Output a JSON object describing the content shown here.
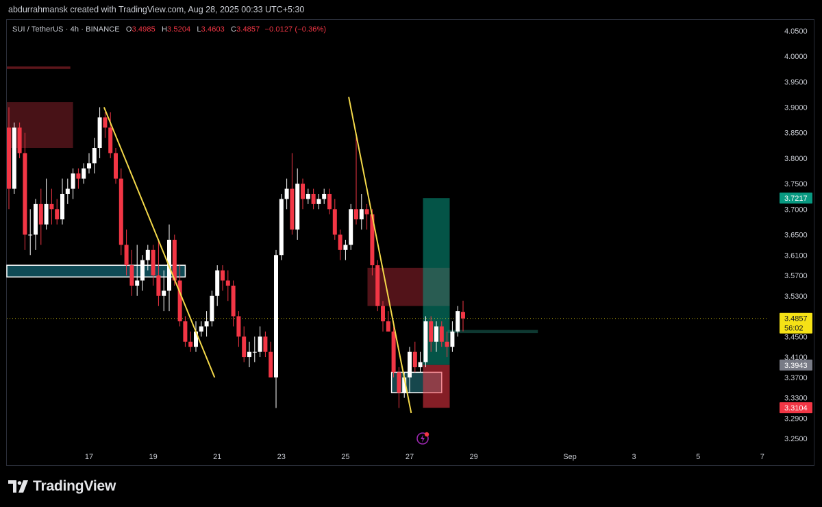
{
  "header": {
    "credit": "abdurrahmansk created with TradingView.com, Aug 28, 2025 00:33 UTC+5:30"
  },
  "legend": {
    "symbol": "SUI / TetherUS · 4h · BINANCE",
    "open_label": "O",
    "open": "3.4985",
    "high_label": "H",
    "high": "3.5204",
    "low_label": "L",
    "low": "3.4603",
    "close_label": "C",
    "close": "3.4857",
    "change": "−0.0127 (−0.36%)"
  },
  "price_axis": {
    "ticks": [
      "4.0500",
      "4.0000",
      "3.9500",
      "3.9000",
      "3.8500",
      "3.8000",
      "3.7500",
      "3.7000",
      "3.6500",
      "3.6100",
      "3.5700",
      "3.5300",
      "3.4500",
      "3.4100",
      "3.3700",
      "3.3300",
      "3.2900",
      "3.2500"
    ],
    "tick_values": [
      4.05,
      4.0,
      3.95,
      3.9,
      3.85,
      3.8,
      3.75,
      3.7,
      3.65,
      3.61,
      3.57,
      3.53,
      3.45,
      3.41,
      3.37,
      3.33,
      3.29,
      3.25
    ],
    "labels": [
      {
        "text": "3.7217",
        "value": 3.7217,
        "color": "#089981"
      },
      {
        "text": "3.4857",
        "sub": "56:02",
        "value": 3.4857,
        "color": "#f5e216"
      },
      {
        "text": "3.3943",
        "value": 3.3943,
        "color": "#787b86"
      },
      {
        "text": "3.3104",
        "value": 3.3104,
        "color": "#f23645"
      }
    ]
  },
  "time_axis": {
    "ticks": [
      "17",
      "19",
      "21",
      "23",
      "25",
      "27",
      "29",
      "Sep",
      "3",
      "5",
      "7"
    ],
    "tick_bars": [
      15,
      27,
      39,
      51,
      63,
      75,
      87,
      105,
      117,
      129,
      141
    ]
  },
  "chart_data": {
    "type": "candlestick",
    "symbol": "SUI / TetherUS",
    "interval": "4h",
    "exchange": "BINANCE",
    "ylim": [
      3.25,
      4.05
    ],
    "colors": {
      "up": "#ffffff",
      "down": "#f23645"
    },
    "candles": [
      {
        "o": 3.86,
        "h": 3.9,
        "l": 3.7,
        "c": 3.74
      },
      {
        "o": 3.74,
        "h": 3.87,
        "l": 3.73,
        "c": 3.86
      },
      {
        "o": 3.86,
        "h": 3.87,
        "l": 3.8,
        "c": 3.81
      },
      {
        "o": 3.81,
        "h": 3.85,
        "l": 3.62,
        "c": 3.65
      },
      {
        "o": 3.65,
        "h": 3.7,
        "l": 3.61,
        "c": 3.65
      },
      {
        "o": 3.65,
        "h": 3.72,
        "l": 3.62,
        "c": 3.71
      },
      {
        "o": 3.71,
        "h": 3.74,
        "l": 3.63,
        "c": 3.67
      },
      {
        "o": 3.67,
        "h": 3.76,
        "l": 3.66,
        "c": 3.71
      },
      {
        "o": 3.71,
        "h": 3.74,
        "l": 3.67,
        "c": 3.7
      },
      {
        "o": 3.7,
        "h": 3.72,
        "l": 3.67,
        "c": 3.68
      },
      {
        "o": 3.68,
        "h": 3.76,
        "l": 3.67,
        "c": 3.73
      },
      {
        "o": 3.73,
        "h": 3.76,
        "l": 3.71,
        "c": 3.74
      },
      {
        "o": 3.74,
        "h": 3.78,
        "l": 3.72,
        "c": 3.77
      },
      {
        "o": 3.77,
        "h": 3.78,
        "l": 3.74,
        "c": 3.76
      },
      {
        "o": 3.76,
        "h": 3.79,
        "l": 3.75,
        "c": 3.78
      },
      {
        "o": 3.78,
        "h": 3.81,
        "l": 3.77,
        "c": 3.79
      },
      {
        "o": 3.79,
        "h": 3.84,
        "l": 3.77,
        "c": 3.82
      },
      {
        "o": 3.82,
        "h": 3.9,
        "l": 3.8,
        "c": 3.88
      },
      {
        "o": 3.88,
        "h": 3.89,
        "l": 3.84,
        "c": 3.86
      },
      {
        "o": 3.86,
        "h": 3.89,
        "l": 3.8,
        "c": 3.81
      },
      {
        "o": 3.81,
        "h": 3.82,
        "l": 3.75,
        "c": 3.76
      },
      {
        "o": 3.76,
        "h": 3.78,
        "l": 3.61,
        "c": 3.63
      },
      {
        "o": 3.63,
        "h": 3.66,
        "l": 3.57,
        "c": 3.59
      },
      {
        "o": 3.59,
        "h": 3.62,
        "l": 3.53,
        "c": 3.55
      },
      {
        "o": 3.55,
        "h": 3.63,
        "l": 3.53,
        "c": 3.56
      },
      {
        "o": 3.56,
        "h": 3.61,
        "l": 3.54,
        "c": 3.6
      },
      {
        "o": 3.6,
        "h": 3.63,
        "l": 3.58,
        "c": 3.62
      },
      {
        "o": 3.62,
        "h": 3.63,
        "l": 3.55,
        "c": 3.57
      },
      {
        "o": 3.57,
        "h": 3.64,
        "l": 3.51,
        "c": 3.53
      },
      {
        "o": 3.53,
        "h": 3.58,
        "l": 3.5,
        "c": 3.54
      },
      {
        "o": 3.54,
        "h": 3.67,
        "l": 3.5,
        "c": 3.64
      },
      {
        "o": 3.64,
        "h": 3.65,
        "l": 3.55,
        "c": 3.56
      },
      {
        "o": 3.56,
        "h": 3.59,
        "l": 3.47,
        "c": 3.48
      },
      {
        "o": 3.48,
        "h": 3.49,
        "l": 3.43,
        "c": 3.44
      },
      {
        "o": 3.44,
        "h": 3.46,
        "l": 3.42,
        "c": 3.43
      },
      {
        "o": 3.43,
        "h": 3.48,
        "l": 3.42,
        "c": 3.46
      },
      {
        "o": 3.46,
        "h": 3.48,
        "l": 3.45,
        "c": 3.47
      },
      {
        "o": 3.47,
        "h": 3.5,
        "l": 3.45,
        "c": 3.48
      },
      {
        "o": 3.48,
        "h": 3.54,
        "l": 3.47,
        "c": 3.53
      },
      {
        "o": 3.53,
        "h": 3.59,
        "l": 3.51,
        "c": 3.58
      },
      {
        "o": 3.58,
        "h": 3.59,
        "l": 3.54,
        "c": 3.56
      },
      {
        "o": 3.56,
        "h": 3.58,
        "l": 3.52,
        "c": 3.55
      },
      {
        "o": 3.55,
        "h": 3.56,
        "l": 3.47,
        "c": 3.49
      },
      {
        "o": 3.49,
        "h": 3.5,
        "l": 3.43,
        "c": 3.45
      },
      {
        "o": 3.45,
        "h": 3.47,
        "l": 3.4,
        "c": 3.41
      },
      {
        "o": 3.41,
        "h": 3.44,
        "l": 3.39,
        "c": 3.42
      },
      {
        "o": 3.42,
        "h": 3.45,
        "l": 3.4,
        "c": 3.42
      },
      {
        "o": 3.42,
        "h": 3.47,
        "l": 3.41,
        "c": 3.45
      },
      {
        "o": 3.45,
        "h": 3.46,
        "l": 3.41,
        "c": 3.42
      },
      {
        "o": 3.42,
        "h": 3.44,
        "l": 3.37,
        "c": 3.37
      },
      {
        "o": 3.37,
        "h": 3.62,
        "l": 3.31,
        "c": 3.61
      },
      {
        "o": 3.61,
        "h": 3.73,
        "l": 3.6,
        "c": 3.72
      },
      {
        "o": 3.72,
        "h": 3.76,
        "l": 3.7,
        "c": 3.74
      },
      {
        "o": 3.74,
        "h": 3.81,
        "l": 3.65,
        "c": 3.66
      },
      {
        "o": 3.66,
        "h": 3.78,
        "l": 3.64,
        "c": 3.75
      },
      {
        "o": 3.75,
        "h": 3.76,
        "l": 3.7,
        "c": 3.72
      },
      {
        "o": 3.72,
        "h": 3.74,
        "l": 3.71,
        "c": 3.73
      },
      {
        "o": 3.73,
        "h": 3.74,
        "l": 3.7,
        "c": 3.71
      },
      {
        "o": 3.71,
        "h": 3.73,
        "l": 3.7,
        "c": 3.72
      },
      {
        "o": 3.72,
        "h": 3.74,
        "l": 3.71,
        "c": 3.73
      },
      {
        "o": 3.73,
        "h": 3.74,
        "l": 3.69,
        "c": 3.7
      },
      {
        "o": 3.7,
        "h": 3.72,
        "l": 3.64,
        "c": 3.65
      },
      {
        "o": 3.65,
        "h": 3.66,
        "l": 3.6,
        "c": 3.62
      },
      {
        "o": 3.62,
        "h": 3.64,
        "l": 3.6,
        "c": 3.63
      },
      {
        "o": 3.63,
        "h": 3.71,
        "l": 3.62,
        "c": 3.7
      },
      {
        "o": 3.7,
        "h": 3.85,
        "l": 3.67,
        "c": 3.68
      },
      {
        "o": 3.68,
        "h": 3.73,
        "l": 3.66,
        "c": 3.7
      },
      {
        "o": 3.7,
        "h": 3.71,
        "l": 3.66,
        "c": 3.69
      },
      {
        "o": 3.69,
        "h": 3.7,
        "l": 3.57,
        "c": 3.59
      },
      {
        "o": 3.59,
        "h": 3.6,
        "l": 3.5,
        "c": 3.51
      },
      {
        "o": 3.51,
        "h": 3.52,
        "l": 3.46,
        "c": 3.48
      },
      {
        "o": 3.48,
        "h": 3.5,
        "l": 3.46,
        "c": 3.46
      },
      {
        "o": 3.46,
        "h": 3.47,
        "l": 3.37,
        "c": 3.38
      },
      {
        "o": 3.38,
        "h": 3.39,
        "l": 3.31,
        "c": 3.34
      },
      {
        "o": 3.34,
        "h": 3.38,
        "l": 3.33,
        "c": 3.37
      },
      {
        "o": 3.37,
        "h": 3.43,
        "l": 3.34,
        "c": 3.42
      },
      {
        "o": 3.42,
        "h": 3.44,
        "l": 3.38,
        "c": 3.39
      },
      {
        "o": 3.39,
        "h": 3.42,
        "l": 3.38,
        "c": 3.4
      },
      {
        "o": 3.4,
        "h": 3.49,
        "l": 3.39,
        "c": 3.48
      },
      {
        "o": 3.48,
        "h": 3.49,
        "l": 3.42,
        "c": 3.44
      },
      {
        "o": 3.44,
        "h": 3.48,
        "l": 3.42,
        "c": 3.47
      },
      {
        "o": 3.47,
        "h": 3.48,
        "l": 3.43,
        "c": 3.44
      },
      {
        "o": 3.44,
        "h": 3.46,
        "l": 3.41,
        "c": 3.43
      },
      {
        "o": 3.43,
        "h": 3.48,
        "l": 3.42,
        "c": 3.46
      },
      {
        "o": 3.46,
        "h": 3.51,
        "l": 3.45,
        "c": 3.5
      },
      {
        "o": 3.4985,
        "h": 3.5204,
        "l": 3.4603,
        "c": 3.4857
      }
    ],
    "zones": [
      {
        "kind": "supply",
        "t1": 0,
        "t2": 12,
        "top": 3.91,
        "bottom": 3.82,
        "fill": "rgba(160,40,50,0.45)"
      },
      {
        "kind": "marker",
        "t1": 0,
        "t2": 11.5,
        "top": 3.98,
        "bottom": 3.975,
        "fill": "rgba(170,40,50,0.55)"
      },
      {
        "kind": "support",
        "t1": 0,
        "t2": 33,
        "top": 3.59,
        "bottom": 3.567,
        "fill": "#0f4a55",
        "stroke": "#ffffff"
      },
      {
        "kind": "supply",
        "t1": 67.5,
        "t2": 82.5,
        "top": 3.585,
        "bottom": 3.51,
        "fill": "rgba(150,35,45,0.55)"
      },
      {
        "kind": "demand",
        "t1": 72,
        "t2": 81,
        "top": 3.38,
        "bottom": 3.34,
        "fill": "rgba(40,130,140,0.55)",
        "stroke": "#ffffff"
      },
      {
        "kind": "level",
        "t1": 82.5,
        "t2": 99,
        "top": 3.463,
        "bottom": 3.457,
        "fill": "rgba(20,80,70,0.7)"
      }
    ],
    "position": {
      "entry": 3.3943,
      "target": 3.7217,
      "stop": 3.3104,
      "t1": 77.5,
      "t2": 82.5
    },
    "trendlines": [
      {
        "t1": 17.8,
        "p1": 3.9,
        "t2": 38.5,
        "p2": 3.37,
        "color": "#f4d94a"
      },
      {
        "t1": 63.6,
        "p1": 3.92,
        "t2": 75.3,
        "p2": 3.3,
        "color": "#f4d94a"
      }
    ],
    "last_price": 3.4857,
    "countdown": "56:02"
  },
  "footer": {
    "brand": "TradingView"
  }
}
